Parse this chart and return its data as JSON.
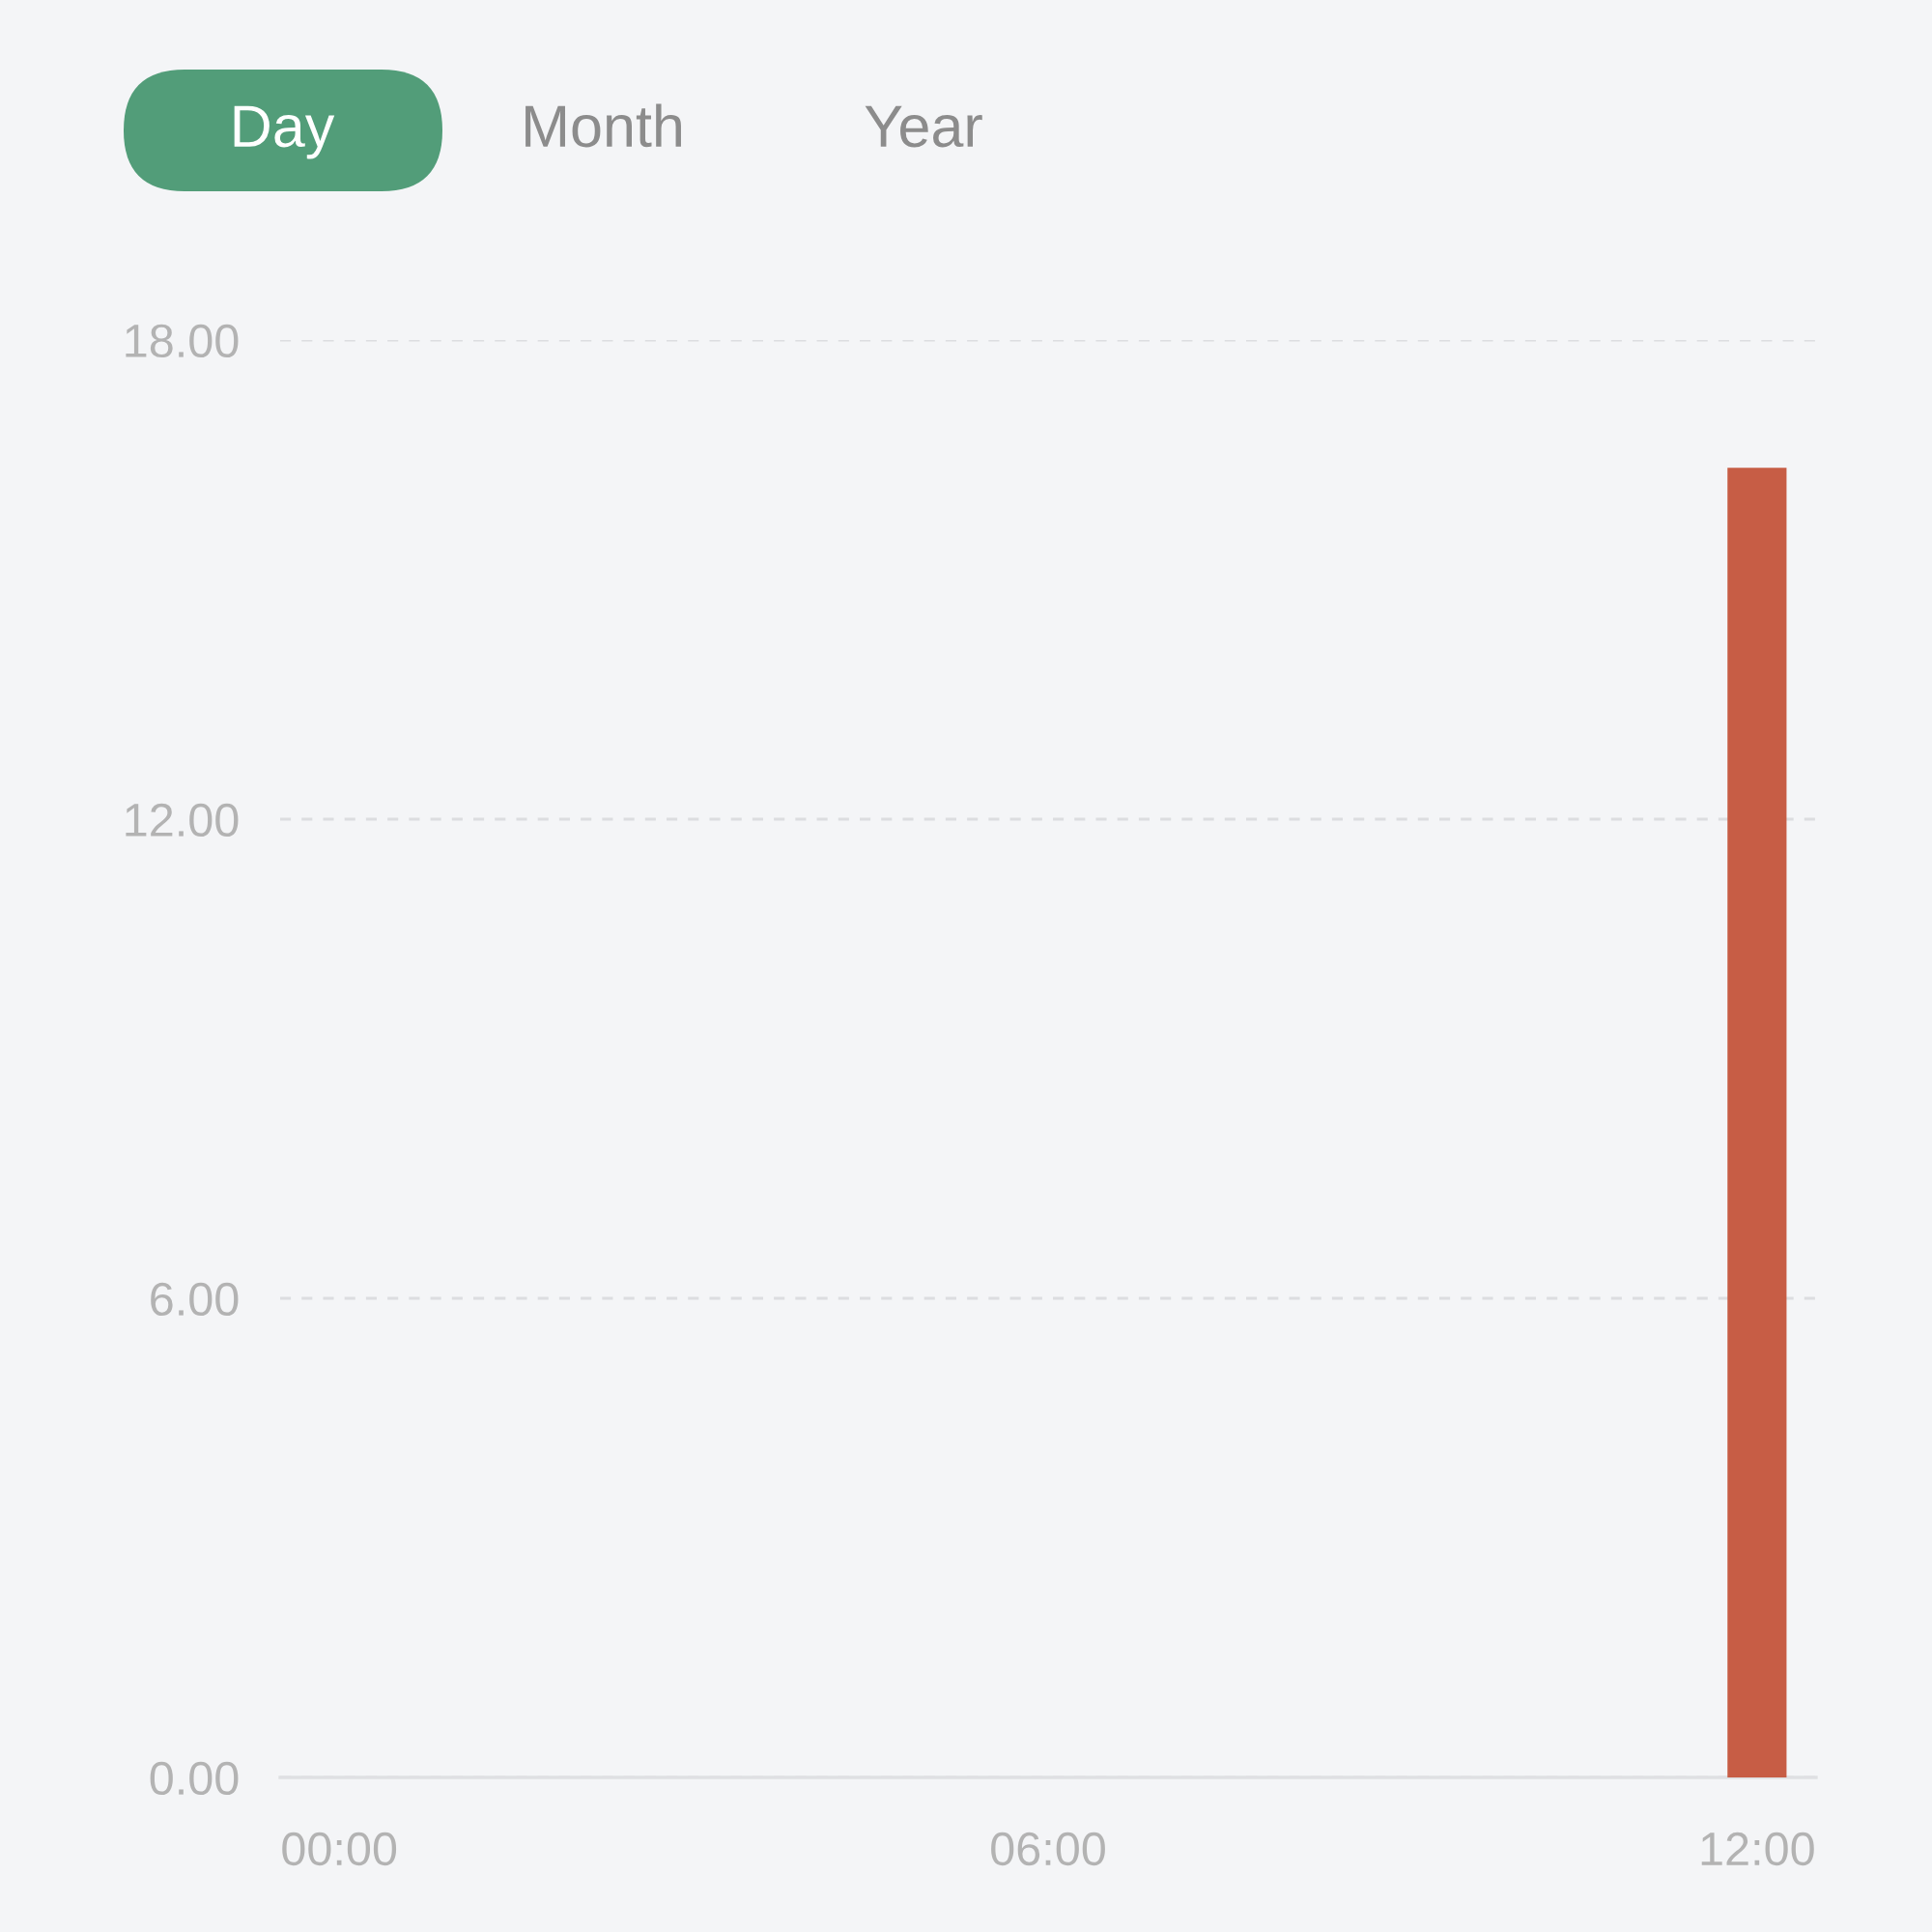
{
  "chart_data": {
    "type": "bar",
    "x": [
      12
    ],
    "values": [
      16.4
    ],
    "color": "#c75d45",
    "xlim": [
      -0.5,
      12.5
    ],
    "xticks": [
      {
        "value": 0,
        "label": "00:00"
      },
      {
        "value": 6,
        "label": "06:00"
      },
      {
        "value": 12,
        "label": "12:00"
      }
    ],
    "ylim": [
      0,
      18
    ],
    "yticks": [
      {
        "value": 0,
        "label": "0.00"
      },
      {
        "value": 6,
        "label": "6.00"
      },
      {
        "value": 12,
        "label": "12.00"
      },
      {
        "value": 18,
        "label": "18.00"
      }
    ],
    "grid": "y",
    "annotations": [
      "Day",
      "Month",
      "Year"
    ]
  }
}
